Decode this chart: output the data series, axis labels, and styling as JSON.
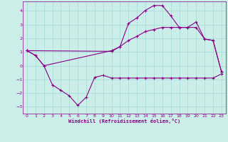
{
  "xlabel": "Windchill (Refroidissement éolien,°C)",
  "bg_color": "#cceee8",
  "grid_color": "#aadddd",
  "line_color": "#880088",
  "xlim": [
    -0.5,
    23.5
  ],
  "ylim": [
    -3.5,
    4.7
  ],
  "xticks": [
    0,
    1,
    2,
    3,
    4,
    5,
    6,
    7,
    8,
    9,
    10,
    11,
    12,
    13,
    14,
    15,
    16,
    17,
    18,
    19,
    20,
    21,
    22,
    23
  ],
  "yticks": [
    -3,
    -2,
    -1,
    0,
    1,
    2,
    3,
    4
  ],
  "line1_x": [
    0,
    1,
    2,
    3,
    4,
    5,
    6,
    7,
    8,
    9,
    10,
    11,
    12,
    13,
    14,
    15,
    16,
    17,
    18,
    19,
    20,
    21,
    22,
    23
  ],
  "line1_y": [
    1.1,
    0.75,
    0.0,
    -1.4,
    -1.8,
    -2.2,
    -2.9,
    -2.3,
    -0.85,
    -0.7,
    -0.9,
    -0.9,
    -0.9,
    -0.9,
    -0.9,
    -0.9,
    -0.9,
    -0.9,
    -0.9,
    -0.9,
    -0.9,
    -0.9,
    -0.9,
    -0.6
  ],
  "line2_x": [
    0,
    1,
    2,
    10,
    11,
    12,
    13,
    14,
    15,
    16,
    17,
    18,
    19,
    20,
    21,
    22,
    23
  ],
  "line2_y": [
    1.1,
    0.75,
    0.0,
    1.1,
    1.4,
    3.1,
    3.5,
    4.05,
    4.4,
    4.4,
    3.65,
    2.8,
    2.8,
    3.2,
    1.95,
    1.85,
    -0.45
  ],
  "line3_x": [
    0,
    10,
    11,
    12,
    13,
    14,
    15,
    16,
    17,
    18,
    19,
    20,
    21,
    22,
    23
  ],
  "line3_y": [
    1.1,
    1.05,
    1.4,
    1.85,
    2.15,
    2.5,
    2.65,
    2.8,
    2.8,
    2.8,
    2.8,
    2.8,
    1.95,
    1.85,
    -0.45
  ]
}
